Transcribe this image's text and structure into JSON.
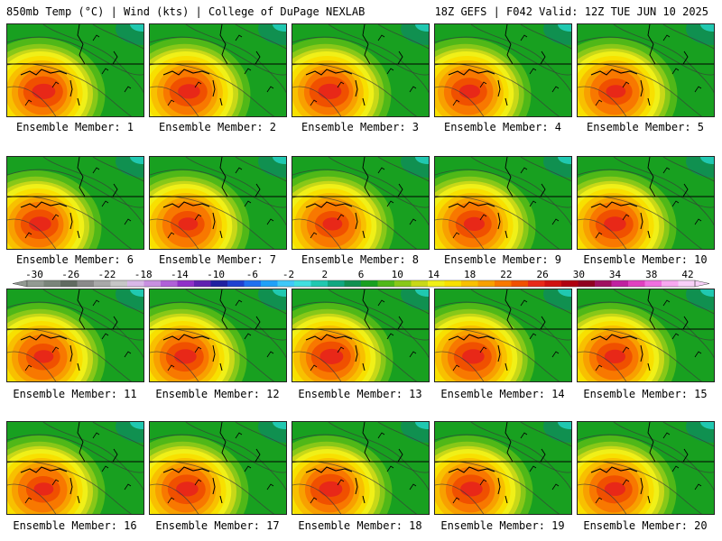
{
  "header": {
    "left": "850mb Temp (°C) | Wind (kts) | College of DuPage NEXLAB",
    "right": "18Z GEFS | F042 Valid: 12Z TUE JUN 10 2025"
  },
  "panel_label_prefix": "Ensemble Member: ",
  "panels": [
    {
      "label": "Ensemble Member: 1",
      "member": 1,
      "hot_intensity": 0.95,
      "hot_shift": 0
    },
    {
      "label": "Ensemble Member: 2",
      "member": 2,
      "hot_intensity": 0.9,
      "hot_shift": 3
    },
    {
      "label": "Ensemble Member: 3",
      "member": 3,
      "hot_intensity": 0.95,
      "hot_shift": 1
    },
    {
      "label": "Ensemble Member: 4",
      "member": 4,
      "hot_intensity": 0.85,
      "hot_shift": -2
    },
    {
      "label": "Ensemble Member: 5",
      "member": 5,
      "hot_intensity": 0.8,
      "hot_shift": 2
    },
    {
      "label": "Ensemble Member: 6",
      "member": 6,
      "hot_intensity": 0.9,
      "hot_shift": -4
    },
    {
      "label": "Ensemble Member: 7",
      "member": 7,
      "hot_intensity": 0.8,
      "hot_shift": 2
    },
    {
      "label": "Ensemble Member: 8",
      "member": 8,
      "hot_intensity": 0.8,
      "hot_shift": 4
    },
    {
      "label": "Ensemble Member: 9",
      "member": 9,
      "hot_intensity": 0.85,
      "hot_shift": 3
    },
    {
      "label": "Ensemble Member: 10",
      "member": 10,
      "hot_intensity": 0.9,
      "hot_shift": 1
    },
    {
      "label": "Ensemble Member: 11",
      "member": 11,
      "hot_intensity": 0.8,
      "hot_shift": 0
    },
    {
      "label": "Ensemble Member: 12",
      "member": 12,
      "hot_intensity": 0.9,
      "hot_shift": -1
    },
    {
      "label": "Ensemble Member: 13",
      "member": 13,
      "hot_intensity": 0.95,
      "hot_shift": 3
    },
    {
      "label": "Ensemble Member: 14",
      "member": 14,
      "hot_intensity": 0.9,
      "hot_shift": 2
    },
    {
      "label": "Ensemble Member: 15",
      "member": 15,
      "hot_intensity": 0.85,
      "hot_shift": 1
    },
    {
      "label": "Ensemble Member: 16",
      "member": 16,
      "hot_intensity": 0.8,
      "hot_shift": 0
    },
    {
      "label": "Ensemble Member: 17",
      "member": 17,
      "hot_intensity": 0.9,
      "hot_shift": 1
    },
    {
      "label": "Ensemble Member: 18",
      "member": 18,
      "hot_intensity": 0.95,
      "hot_shift": 2
    },
    {
      "label": "Ensemble Member: 19",
      "member": 19,
      "hot_intensity": 0.9,
      "hot_shift": 0
    },
    {
      "label": "Ensemble Member: 20",
      "member": 20,
      "hot_intensity": 0.85,
      "hot_shift": 1
    }
  ],
  "colorbar": {
    "tick_labels": [
      "-30",
      "-26",
      "-22",
      "-18",
      "-14",
      "-10",
      "-6",
      "-2",
      "2",
      "6",
      "10",
      "14",
      "18",
      "22",
      "26",
      "30",
      "34",
      "38",
      "42"
    ],
    "colors": [
      "#929a92",
      "#7a847a",
      "#616b61",
      "#8a8a8a",
      "#a9a9a9",
      "#c6c6c6",
      "#d8b8e8",
      "#c890e0",
      "#b060d8",
      "#9030c8",
      "#6020b0",
      "#2020a0",
      "#2040d0",
      "#2070f0",
      "#20a0f8",
      "#40c8f8",
      "#40e0e0",
      "#20c8b0",
      "#10a880",
      "#109050",
      "#18a020",
      "#50b818",
      "#88c818",
      "#c8d818",
      "#f0f018",
      "#f8e000",
      "#f8c000",
      "#f8a000",
      "#f87800",
      "#f05000",
      "#e82818",
      "#d01010",
      "#b00010",
      "#900020",
      "#a01060",
      "#c020a0",
      "#e040c0",
      "#f070e0",
      "#f8a8f0",
      "#f8d0f8"
    ]
  },
  "map_colors": {
    "green": "#18a020",
    "lightgreen": "#50b818",
    "yellowgreen": "#88c818",
    "lime": "#c8d818",
    "yellow": "#f0f018",
    "gold": "#f8e000",
    "orange1": "#f8c000",
    "orange2": "#f8a000",
    "orange3": "#f87800",
    "red1": "#f05000",
    "red2": "#e82818",
    "teal": "#20c8b0",
    "darkgreen": "#109050"
  }
}
